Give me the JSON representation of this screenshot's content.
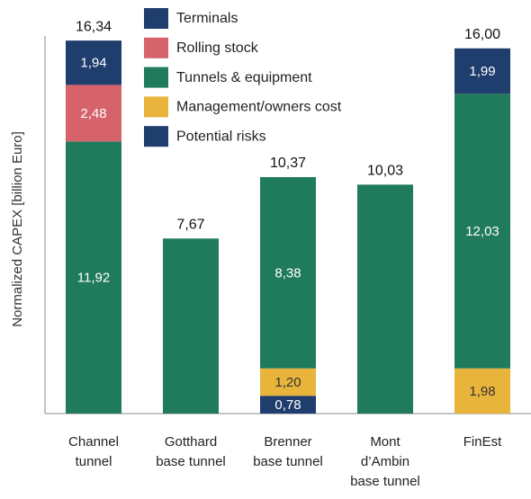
{
  "chart_data": {
    "type": "stacked_bar",
    "y_label": "Normalized CAPEX [billion Euro]",
    "categories": [
      "Channel tunnel",
      "Gotthard base tunnel",
      "Brenner base tunnel",
      "Mont d’Ambin base tunnel",
      "FinEst"
    ],
    "ylim": [
      0,
      18
    ],
    "series": [
      {
        "name": "Potential risks",
        "color": "#1f3d6d",
        "label_color": "#ffffff",
        "values": [
          null,
          null,
          0.78,
          null,
          null
        ],
        "value_labels": [
          null,
          null,
          "0,78",
          null,
          null
        ]
      },
      {
        "name": "Management/owners cost",
        "color": "#e9b43b",
        "label_color": "#333333",
        "values": [
          null,
          null,
          1.2,
          null,
          1.98
        ],
        "value_labels": [
          null,
          null,
          "1,20",
          null,
          "1,98"
        ]
      },
      {
        "name": "Tunnels & equipment",
        "color": "#207a5c",
        "label_color": "#ffffff",
        "values": [
          11.92,
          7.67,
          8.38,
          10.03,
          12.03
        ],
        "value_labels": [
          "11,92",
          null,
          "8,38",
          null,
          "12,03"
        ]
      },
      {
        "name": "Rolling stock",
        "color": "#d6626b",
        "label_color": "#ffffff",
        "values": [
          2.48,
          null,
          null,
          null,
          null
        ],
        "value_labels": [
          "2,48",
          null,
          null,
          null,
          null
        ]
      },
      {
        "name": "Terminals",
        "color": "#1f3d6d",
        "label_color": "#ffffff",
        "values": [
          1.94,
          null,
          null,
          null,
          1.99
        ],
        "value_labels": [
          "1,94",
          null,
          null,
          null,
          "1,99"
        ]
      }
    ],
    "totals": [
      16.34,
      7.67,
      10.37,
      10.03,
      16.0
    ],
    "total_labels": [
      "16,34",
      "7,67",
      "10,37",
      "10,03",
      "16,00"
    ]
  }
}
